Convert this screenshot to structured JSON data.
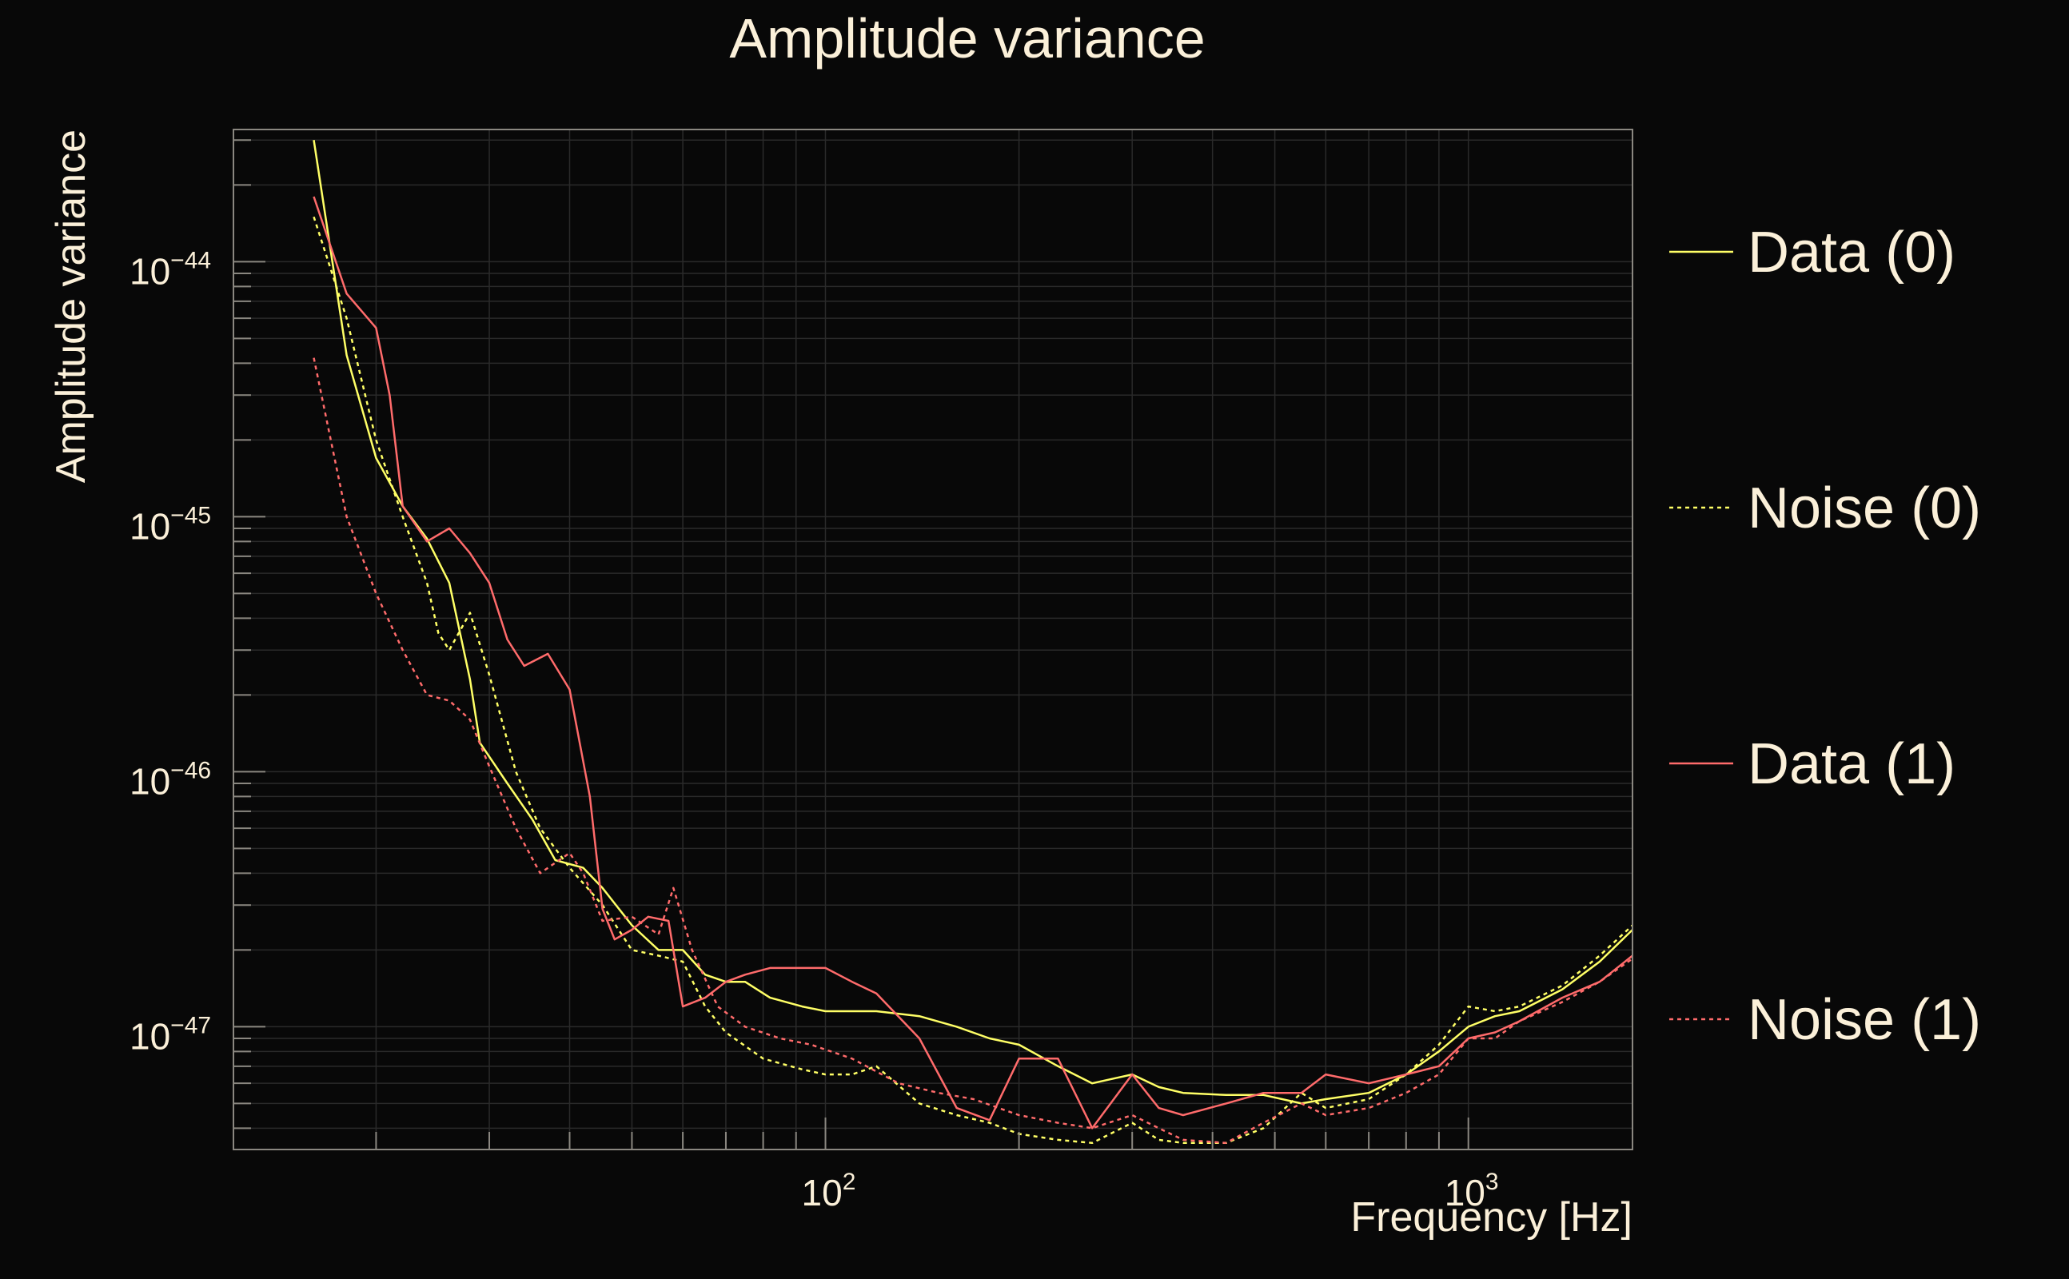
{
  "chart_data": {
    "type": "line",
    "title": "Amplitude variance",
    "xlabel": "Frequency [Hz]",
    "ylabel": "Amplitude variance",
    "xscale": "log",
    "yscale": "log",
    "xlim": [
      12,
      1800
    ],
    "ylim": [
      3.3e-48,
      3.3e-44
    ],
    "x_ticks": [
      {
        "mantissa": "10",
        "exponent": "2",
        "value": 100
      },
      {
        "mantissa": "10",
        "exponent": "3",
        "value": 1000
      }
    ],
    "y_ticks": [
      {
        "mantissa": "10",
        "exponent": "−44",
        "value": 1e-44
      },
      {
        "mantissa": "10",
        "exponent": "−45",
        "value": 1e-45
      },
      {
        "mantissa": "10",
        "exponent": "−46",
        "value": 1e-46
      },
      {
        "mantissa": "10",
        "exponent": "−47",
        "value": 1e-47
      }
    ],
    "grid": true,
    "legend_position": "right",
    "series": [
      {
        "name": "Data (0)",
        "color": "#ffff66",
        "style": "solid",
        "points": [
          [
            16,
            3e-44
          ],
          [
            18,
            4.3e-45
          ],
          [
            20,
            1.7e-45
          ],
          [
            22,
            1.1e-45
          ],
          [
            24,
            8.2e-46
          ],
          [
            26,
            5.5e-46
          ],
          [
            28,
            2.3e-46
          ],
          [
            29,
            1.3e-46
          ],
          [
            32,
            9e-47
          ],
          [
            35,
            6.5e-47
          ],
          [
            38,
            4.5e-47
          ],
          [
            42,
            4.2e-47
          ],
          [
            45,
            3.5e-47
          ],
          [
            50,
            2.5e-47
          ],
          [
            55,
            2e-47
          ],
          [
            60,
            2e-47
          ],
          [
            65,
            1.6e-47
          ],
          [
            70,
            1.5e-47
          ],
          [
            75,
            1.5e-47
          ],
          [
            82,
            1.3e-47
          ],
          [
            92,
            1.2e-47
          ],
          [
            100,
            1.15e-47
          ],
          [
            110,
            1.15e-47
          ],
          [
            120,
            1.15e-47
          ],
          [
            140,
            1.1e-47
          ],
          [
            160,
            1e-47
          ],
          [
            180,
            9e-48
          ],
          [
            200,
            8.5e-48
          ],
          [
            230,
            7e-48
          ],
          [
            260,
            6e-48
          ],
          [
            300,
            6.5e-48
          ],
          [
            330,
            5.8e-48
          ],
          [
            360,
            5.5e-48
          ],
          [
            420,
            5.4e-48
          ],
          [
            480,
            5.4e-48
          ],
          [
            550,
            5e-48
          ],
          [
            600,
            5.2e-48
          ],
          [
            700,
            5.5e-48
          ],
          [
            800,
            6.5e-48
          ],
          [
            900,
            8e-48
          ],
          [
            1000,
            1e-47
          ],
          [
            1100,
            1.1e-47
          ],
          [
            1200,
            1.15e-47
          ],
          [
            1400,
            1.4e-47
          ],
          [
            1600,
            1.8e-47
          ],
          [
            1800,
            2.4e-47
          ]
        ]
      },
      {
        "name": "Noise (0)",
        "color": "#ffff66",
        "style": "dashed",
        "points": [
          [
            16,
            1.5e-44
          ],
          [
            18,
            6e-45
          ],
          [
            20,
            2e-45
          ],
          [
            22,
            1e-45
          ],
          [
            24,
            5.5e-46
          ],
          [
            25,
            3.5e-46
          ],
          [
            26,
            3e-46
          ],
          [
            28,
            4.2e-46
          ],
          [
            30,
            2.4e-46
          ],
          [
            33,
            1e-46
          ],
          [
            36,
            6e-47
          ],
          [
            40,
            4.2e-47
          ],
          [
            45,
            3e-47
          ],
          [
            50,
            2e-47
          ],
          [
            55,
            1.9e-47
          ],
          [
            60,
            1.8e-47
          ],
          [
            65,
            1.2e-47
          ],
          [
            70,
            9.5e-48
          ],
          [
            80,
            7.5e-48
          ],
          [
            92,
            6.8e-48
          ],
          [
            100,
            6.5e-48
          ],
          [
            110,
            6.5e-48
          ],
          [
            120,
            7e-48
          ],
          [
            140,
            5e-48
          ],
          [
            160,
            4.5e-48
          ],
          [
            180,
            4.2e-48
          ],
          [
            200,
            3.8e-48
          ],
          [
            230,
            3.6e-48
          ],
          [
            260,
            3.5e-48
          ],
          [
            300,
            4.2e-48
          ],
          [
            330,
            3.6e-48
          ],
          [
            360,
            3.5e-48
          ],
          [
            420,
            3.5e-48
          ],
          [
            480,
            4e-48
          ],
          [
            550,
            5.5e-48
          ],
          [
            600,
            4.8e-48
          ],
          [
            700,
            5.2e-48
          ],
          [
            800,
            6.5e-48
          ],
          [
            900,
            8.5e-48
          ],
          [
            1000,
            1.2e-47
          ],
          [
            1100,
            1.15e-47
          ],
          [
            1200,
            1.2e-47
          ],
          [
            1400,
            1.45e-47
          ],
          [
            1600,
            1.9e-47
          ],
          [
            1800,
            2.5e-47
          ]
        ]
      },
      {
        "name": "Data (1)",
        "color": "#ff6b6b",
        "style": "solid",
        "points": [
          [
            16,
            1.8e-44
          ],
          [
            18,
            7.5e-45
          ],
          [
            20,
            5.5e-45
          ],
          [
            21,
            3e-45
          ],
          [
            22,
            1.1e-45
          ],
          [
            24,
            8e-46
          ],
          [
            26,
            9e-46
          ],
          [
            28,
            7.2e-46
          ],
          [
            30,
            5.5e-46
          ],
          [
            32,
            3.3e-46
          ],
          [
            34,
            2.6e-46
          ],
          [
            37,
            2.9e-46
          ],
          [
            40,
            2.1e-46
          ],
          [
            43,
            8e-47
          ],
          [
            45,
            2.9e-47
          ],
          [
            47,
            2.2e-47
          ],
          [
            50,
            2.4e-47
          ],
          [
            53,
            2.7e-47
          ],
          [
            57,
            2.6e-47
          ],
          [
            60,
            1.2e-47
          ],
          [
            65,
            1.3e-47
          ],
          [
            70,
            1.5e-47
          ],
          [
            75,
            1.6e-47
          ],
          [
            82,
            1.7e-47
          ],
          [
            92,
            1.7e-47
          ],
          [
            100,
            1.7e-47
          ],
          [
            110,
            1.5e-47
          ],
          [
            120,
            1.35e-47
          ],
          [
            140,
            9e-48
          ],
          [
            160,
            4.8e-48
          ],
          [
            180,
            4.3e-48
          ],
          [
            200,
            7.5e-48
          ],
          [
            230,
            7.5e-48
          ],
          [
            260,
            4e-48
          ],
          [
            300,
            6.5e-48
          ],
          [
            330,
            4.8e-48
          ],
          [
            360,
            4.5e-48
          ],
          [
            420,
            5e-48
          ],
          [
            480,
            5.5e-48
          ],
          [
            550,
            5.5e-48
          ],
          [
            600,
            6.5e-48
          ],
          [
            700,
            6e-48
          ],
          [
            800,
            6.5e-48
          ],
          [
            900,
            7e-48
          ],
          [
            1000,
            9e-48
          ],
          [
            1100,
            9.5e-48
          ],
          [
            1200,
            1.05e-47
          ],
          [
            1400,
            1.3e-47
          ],
          [
            1600,
            1.5e-47
          ],
          [
            1800,
            1.9e-47
          ]
        ]
      },
      {
        "name": "Noise (1)",
        "color": "#ff6b6b",
        "style": "dashed",
        "points": [
          [
            16,
            4.2e-45
          ],
          [
            18,
            1e-45
          ],
          [
            20,
            5e-46
          ],
          [
            22,
            3e-46
          ],
          [
            24,
            2e-46
          ],
          [
            26,
            1.9e-46
          ],
          [
            28,
            1.6e-46
          ],
          [
            30,
            1.05e-46
          ],
          [
            33,
            6e-47
          ],
          [
            36,
            4e-47
          ],
          [
            40,
            4.8e-47
          ],
          [
            42,
            4e-47
          ],
          [
            45,
            2.6e-47
          ],
          [
            50,
            2.7e-47
          ],
          [
            55,
            2.3e-47
          ],
          [
            58,
            3.5e-47
          ],
          [
            62,
            2e-47
          ],
          [
            68,
            1.2e-47
          ],
          [
            75,
            1e-47
          ],
          [
            85,
            9e-48
          ],
          [
            95,
            8.5e-48
          ],
          [
            110,
            7.5e-48
          ],
          [
            130,
            6e-48
          ],
          [
            150,
            5.5e-48
          ],
          [
            170,
            5.2e-48
          ],
          [
            200,
            4.5e-48
          ],
          [
            230,
            4.2e-48
          ],
          [
            260,
            4e-48
          ],
          [
            300,
            4.5e-48
          ],
          [
            330,
            4e-48
          ],
          [
            360,
            3.6e-48
          ],
          [
            420,
            3.5e-48
          ],
          [
            480,
            4.2e-48
          ],
          [
            550,
            5e-48
          ],
          [
            600,
            4.5e-48
          ],
          [
            700,
            4.8e-48
          ],
          [
            800,
            5.5e-48
          ],
          [
            900,
            6.5e-48
          ],
          [
            1000,
            9e-48
          ],
          [
            1100,
            9e-48
          ],
          [
            1200,
            1.05e-47
          ],
          [
            1400,
            1.25e-47
          ],
          [
            1600,
            1.5e-47
          ],
          [
            1800,
            1.85e-47
          ]
        ]
      }
    ]
  }
}
